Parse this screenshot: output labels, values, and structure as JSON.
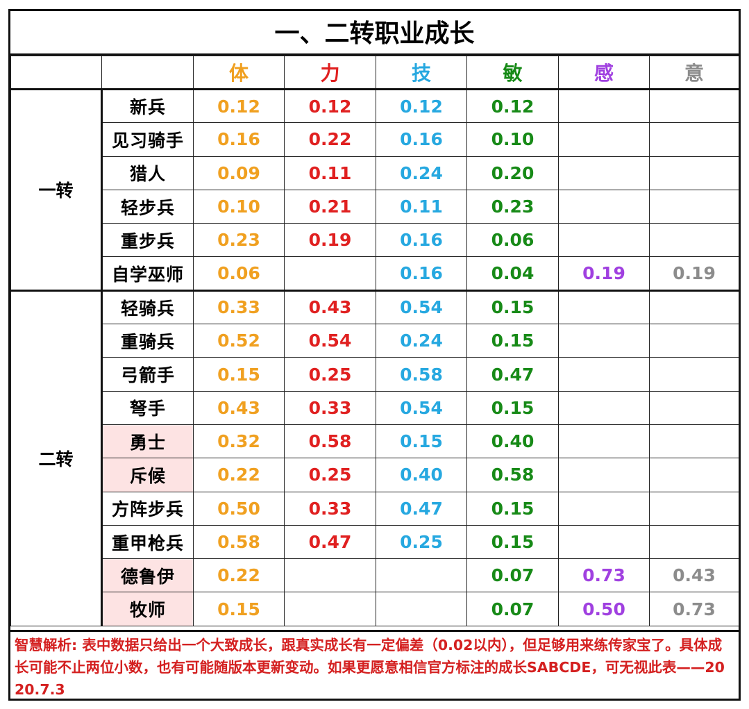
{
  "title": "一、二转职业成长",
  "headers": [
    "",
    "",
    "体",
    "力",
    "技",
    "敏",
    "感",
    "意"
  ],
  "colors": {
    "体": "#f0a020",
    "力": "#e02020",
    "技": "#26a8e0",
    "敏": "#178a17",
    "感": "#a040e0",
    "意": "#8c8c8c",
    "highlight_bg": "#fde3e3",
    "note": "#d42020"
  },
  "groups": [
    {
      "label": "一转",
      "rows": [
        {
          "name": "新兵",
          "highlight": false,
          "vals": [
            "0.12",
            "0.12",
            "0.12",
            "0.12",
            "",
            ""
          ]
        },
        {
          "name": "见习骑手",
          "highlight": false,
          "vals": [
            "0.16",
            "0.22",
            "0.16",
            "0.10",
            "",
            ""
          ]
        },
        {
          "name": "猎人",
          "highlight": false,
          "vals": [
            "0.09",
            "0.11",
            "0.24",
            "0.20",
            "",
            ""
          ]
        },
        {
          "name": "轻步兵",
          "highlight": false,
          "vals": [
            "0.10",
            "0.21",
            "0.11",
            "0.23",
            "",
            ""
          ]
        },
        {
          "name": "重步兵",
          "highlight": false,
          "vals": [
            "0.23",
            "0.19",
            "0.16",
            "0.06",
            "",
            ""
          ]
        },
        {
          "name": "自学巫师",
          "highlight": false,
          "vals": [
            "0.06",
            "",
            "0.16",
            "0.04",
            "0.19",
            "0.19"
          ]
        }
      ]
    },
    {
      "label": "二转",
      "rows": [
        {
          "name": "轻骑兵",
          "highlight": false,
          "vals": [
            "0.33",
            "0.43",
            "0.54",
            "0.15",
            "",
            ""
          ]
        },
        {
          "name": "重骑兵",
          "highlight": false,
          "vals": [
            "0.52",
            "0.54",
            "0.24",
            "0.15",
            "",
            ""
          ]
        },
        {
          "name": "弓箭手",
          "highlight": false,
          "vals": [
            "0.15",
            "0.25",
            "0.58",
            "0.47",
            "",
            ""
          ]
        },
        {
          "name": "弩手",
          "highlight": false,
          "vals": [
            "0.43",
            "0.33",
            "0.54",
            "0.15",
            "",
            ""
          ]
        },
        {
          "name": "勇士",
          "highlight": true,
          "vals": [
            "0.32",
            "0.58",
            "0.15",
            "0.40",
            "",
            ""
          ]
        },
        {
          "name": "斥候",
          "highlight": true,
          "vals": [
            "0.22",
            "0.25",
            "0.40",
            "0.58",
            "",
            ""
          ]
        },
        {
          "name": "方阵步兵",
          "highlight": false,
          "vals": [
            "0.50",
            "0.33",
            "0.47",
            "0.15",
            "",
            ""
          ]
        },
        {
          "name": "重甲枪兵",
          "highlight": false,
          "vals": [
            "0.58",
            "0.47",
            "0.25",
            "0.15",
            "",
            ""
          ]
        },
        {
          "name": "德鲁伊",
          "highlight": true,
          "vals": [
            "0.22",
            "",
            "",
            "0.07",
            "0.73",
            "0.43"
          ]
        },
        {
          "name": "牧师",
          "highlight": true,
          "vals": [
            "0.15",
            "",
            "",
            "0.07",
            "0.50",
            "0.73"
          ]
        }
      ]
    }
  ],
  "note": "智慧解析: 表中数据只给出一个大致成长，跟真实成长有一定偏差（0.02以内），但足够用来练传家宝了。具体成长可能不止两位小数，也有可能随版本更新变动。如果更愿意相信官方标注的成长SABCDE，可无视此表——2020.7.3"
}
